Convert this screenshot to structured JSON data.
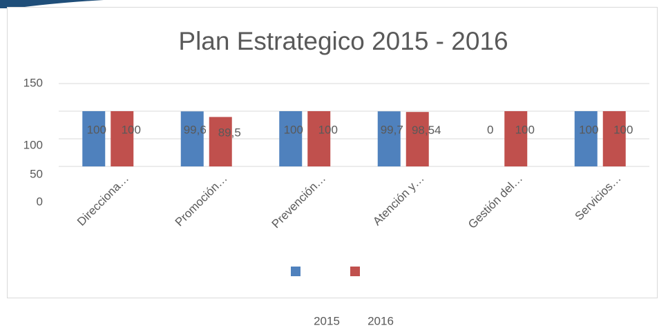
{
  "chart_data": {
    "type": "bar",
    "title": "Plan Estrategico 2015 - 2016",
    "categories": [
      "Direcciona…",
      "Promoción…",
      "Prevención…",
      "Atención y…",
      "Gestión del…",
      "Servicios…"
    ],
    "series": [
      {
        "name": "2015",
        "color": "#4f81bd",
        "values": [
          100,
          99.6,
          100,
          99.7,
          0,
          100
        ],
        "value_labels": [
          "100",
          "99,6",
          "100",
          "99,7",
          "0",
          "100"
        ]
      },
      {
        "name": "2016",
        "color": "#c0504d",
        "values": [
          100,
          89.5,
          100,
          98.54,
          100,
          100
        ],
        "value_labels": [
          "100",
          "89,5",
          "100",
          "98,54",
          "100",
          "100"
        ]
      }
    ],
    "ylim": [
      0,
      150
    ],
    "yticks": [
      0,
      50,
      100,
      150
    ],
    "grid": true
  }
}
